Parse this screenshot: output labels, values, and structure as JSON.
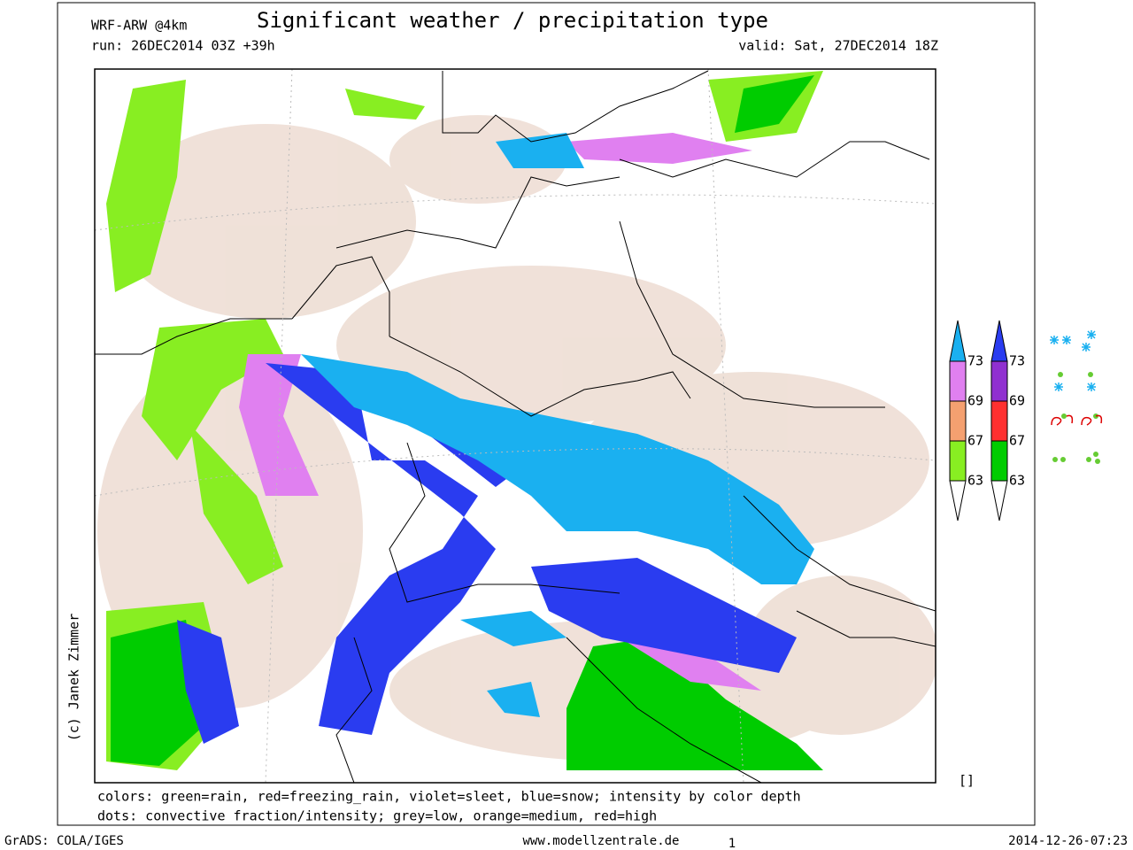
{
  "header": {
    "model": "WRF-ARW @4km",
    "title": "Significant weather / precipitation type",
    "run": "run: 26DEC2014 03Z +39h",
    "valid": "valid: Sat, 27DEC2014 18Z"
  },
  "credit": "(c) Janek Zimmer",
  "legend": {
    "bars": [
      {
        "labels": [
          "73",
          "69",
          "67",
          "63"
        ]
      },
      {
        "labels": [
          "73",
          "69",
          "67",
          "63"
        ]
      }
    ],
    "box": "[]"
  },
  "notes": [
    "colors: green=rain, red=freezing_rain, violet=sleet, blue=snow; intensity by color depth",
    "dots: convective fraction/intensity;  grey=low, orange=medium, red=high"
  ],
  "footer": {
    "left": "GrADS: COLA/IGES",
    "center": "www.modellzentrale.de",
    "page": "1",
    "right": "2014-12-26-07:23"
  }
}
